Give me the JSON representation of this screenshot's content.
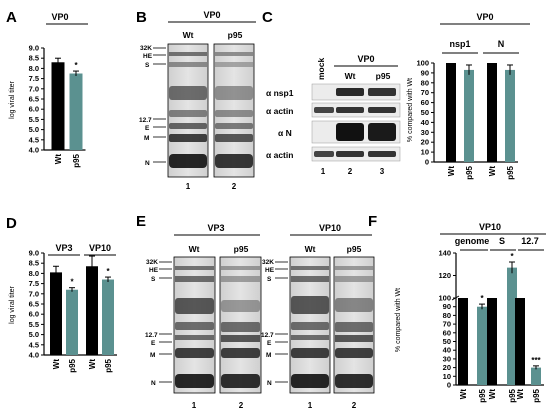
{
  "panel_labels": {
    "A": "A",
    "B": "B",
    "C": "C",
    "D": "D",
    "E": "E",
    "F": "F"
  },
  "colors": {
    "wt": "#000000",
    "p95": "#5b9190"
  },
  "chart_data": [
    {
      "panel": "A",
      "type": "bar",
      "title": "VP0",
      "ylabel": "log viral titer",
      "categories": [
        "Wt",
        "p95"
      ],
      "values": [
        8.3,
        7.75
      ],
      "errors": [
        0.2,
        0.12
      ],
      "significance": [
        "",
        "*"
      ],
      "ylim": [
        4.0,
        9.0
      ],
      "yticks": [
        "4.0",
        "4.5",
        "5.0",
        "5.5",
        "6.0",
        "6.5",
        "7.0",
        "7.5",
        "8.0",
        "8.5",
        "9.0"
      ]
    },
    {
      "panel": "C",
      "type": "bar",
      "title": "VP0",
      "ylabel": "% compared with Wt",
      "groups": [
        "nsp1",
        "N"
      ],
      "categories": [
        "Wt",
        "p95",
        "Wt",
        "p95"
      ],
      "values": [
        100,
        93,
        100,
        93
      ],
      "errors": [
        0,
        5,
        0,
        5
      ],
      "significance": [
        "",
        "",
        "",
        ""
      ],
      "ylim": [
        0,
        100
      ],
      "yticks": [
        "0",
        "10",
        "20",
        "30",
        "40",
        "50",
        "60",
        "70",
        "80",
        "90",
        "100"
      ]
    },
    {
      "panel": "D",
      "type": "bar",
      "ylabel": "log viral titer",
      "groups": [
        "VP3",
        "VP10"
      ],
      "categories": [
        "Wt",
        "p95",
        "Wt",
        "p95"
      ],
      "values": [
        8.05,
        7.2,
        8.35,
        7.7
      ],
      "errors": [
        0.3,
        0.1,
        0.5,
        0.12
      ],
      "significance": [
        "",
        "*",
        "",
        "*"
      ],
      "ylim": [
        4.0,
        9.0
      ],
      "yticks": [
        "4.0",
        "4.5",
        "5.0",
        "5.5",
        "6.0",
        "6.5",
        "7.0",
        "7.5",
        "8.0",
        "8.5",
        "9.0"
      ]
    },
    {
      "panel": "F",
      "type": "bar",
      "title": "VP10",
      "ylabel": "% compared with Wt",
      "groups": [
        "genome",
        "S",
        "12.7"
      ],
      "categories": [
        "Wt",
        "p95",
        "Wt",
        "p95",
        "Wt",
        "p95"
      ],
      "values": [
        100,
        90,
        100,
        127,
        100,
        20
      ],
      "errors": [
        0,
        3,
        0,
        5,
        0,
        2
      ],
      "significance": [
        "",
        "*",
        "",
        "*",
        "",
        "***"
      ],
      "ylim": [
        0,
        140
      ],
      "yticks": [
        "0",
        "10",
        "20",
        "30",
        "40",
        "50",
        "60",
        "70",
        "80",
        "90",
        "100",
        "120",
        "140"
      ]
    }
  ],
  "gel_B": {
    "title": "VP0",
    "lanes": [
      "Wt",
      "p95"
    ],
    "lane_numbers": [
      "1",
      "2"
    ],
    "markers": [
      "32K",
      "HE",
      "S",
      "12.7",
      "E",
      "M",
      "N"
    ]
  },
  "blot_C": {
    "lanes": [
      "mock",
      "Wt",
      "p95"
    ],
    "group_label": "VP0",
    "rows": [
      "α nsp1",
      "α actin",
      "α N",
      "α actin"
    ],
    "lane_numbers": [
      "1",
      "2",
      "3"
    ]
  },
  "gels_E": [
    {
      "title": "VP3",
      "lanes": [
        "Wt",
        "p95"
      ],
      "lane_numbers": [
        "1",
        "2"
      ],
      "markers": [
        "32K",
        "HE",
        "S",
        "12.7",
        "E",
        "M",
        "N"
      ]
    },
    {
      "title": "VP10",
      "lanes": [
        "Wt",
        "p95"
      ],
      "lane_numbers": [
        "1",
        "2"
      ],
      "markers": [
        "32K",
        "HE",
        "S",
        "12.7",
        "E",
        "M",
        "N"
      ]
    }
  ]
}
